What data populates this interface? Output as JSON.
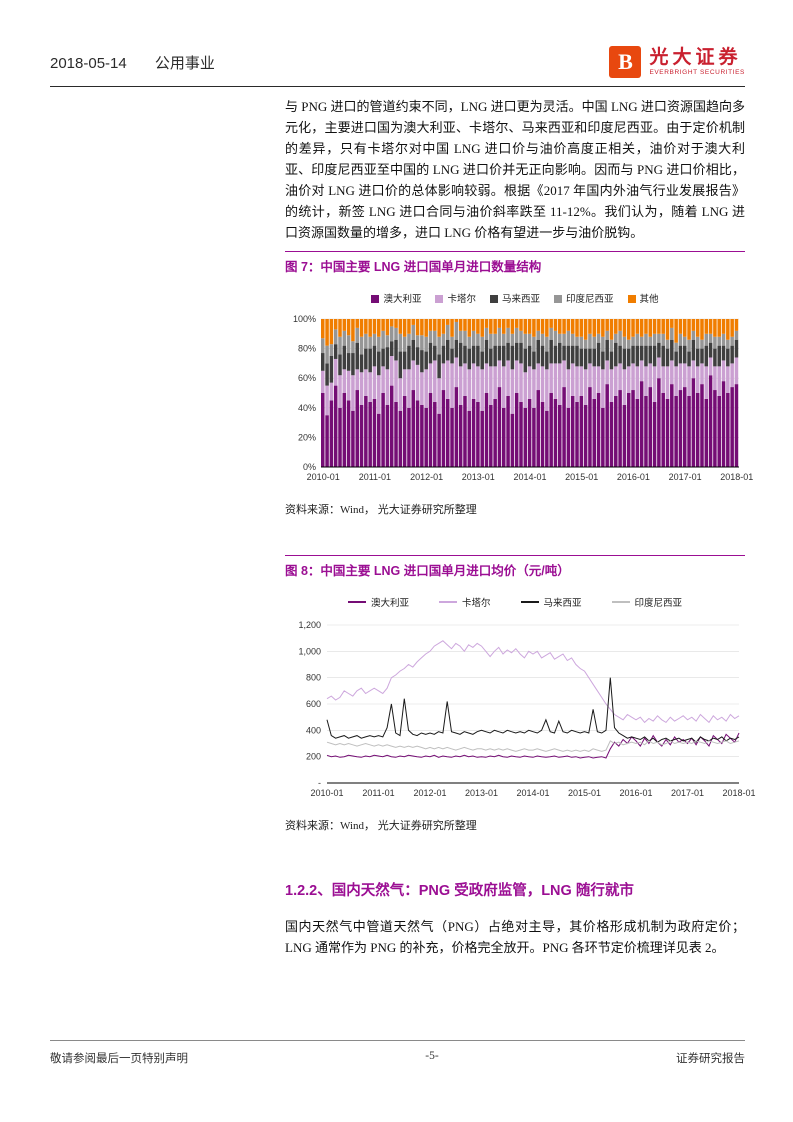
{
  "header": {
    "date": "2018-05-14",
    "sector": "公用事业",
    "brand_name": "光大证券",
    "brand_subtitle": "EVERBRIGHT SECURITIES",
    "logo_letter": "B",
    "logo_color": "#E8480F",
    "brand_red": "#C9202F"
  },
  "paragraphs": {
    "p1": "与 PNG 进口的管道约束不同，LNG 进口更为灵活。中国 LNG 进口资源国趋向多元化，主要进口国为澳大利亚、卡塔尔、马来西亚和印度尼西亚。由于定价机制的差异，只有卡塔尔对中国 LNG 进口价与油价高度正相关，油价对于澳大利亚、印度尼西亚至中国的 LNG 进口价并无正向影响。因而与 PNG 进口价相比，油价对 LNG 进口价的总体影响较弱。根据《2017 年国内外油气行业发展报告》的统计，新签 LNG 进口合同与油价斜率跌至 11-12%。我们认为，随着 LNG 进口资源国数量的增多，进口 LNG 价格有望进一步与油价脱钩。",
    "p2": "国内天然气中管道天然气（PNG）占绝对主导，其价格形成机制为政府定价；LNG 通常作为 PNG 的补充，价格完全放开。PNG 各环节定价梳理详见表 2。"
  },
  "figure7": {
    "title": "图 7：中国主要 LNG 进口国单月进口数量结构",
    "source": "资料来源：Wind， 光大证券研究所整理"
  },
  "figure8": {
    "title": "图 8：中国主要 LNG 进口国单月进口均价（元/吨）",
    "source": "资料来源：Wind， 光大证券研究所整理"
  },
  "section122": {
    "heading": "1.2.2、国内天然气：PNG 受政府监管，LNG 随行就市"
  },
  "footer": {
    "left": "敬请参阅最后一页特别声明",
    "center": "-5-",
    "right": "证券研究报告"
  },
  "accent_purple": "#9B0E93",
  "chart_data": [
    {
      "type": "bar",
      "subtype": "stacked-100pct",
      "title": "图 7：中国主要 LNG 进口国单月进口数量结构",
      "x_range": [
        "2010-01",
        "2018-01"
      ],
      "x_tick_labels": [
        "2010-01",
        "2011-01",
        "2012-01",
        "2013-01",
        "2014-01",
        "2015-01",
        "2016-01",
        "2017-01",
        "2018-01"
      ],
      "y_tick_labels": [
        "100%",
        "80%",
        "60%",
        "40%",
        "20%",
        "0%"
      ],
      "ylim": [
        0,
        100
      ],
      "grid": true,
      "legend_position": "top",
      "series": [
        {
          "name": "澳大利亚",
          "color": "#750D75",
          "values": [
            50,
            35,
            45,
            55,
            40,
            50,
            45,
            38,
            52,
            42,
            48,
            44,
            46,
            36,
            50,
            42,
            55,
            44,
            38,
            48,
            40,
            52,
            45,
            42,
            40,
            50,
            44,
            36,
            52,
            46,
            40,
            54,
            42,
            48,
            38,
            46,
            44,
            38,
            50,
            42,
            46,
            54,
            40,
            48,
            36,
            50,
            44,
            40,
            46,
            40,
            52,
            44,
            38,
            50,
            46,
            42,
            54,
            40,
            48,
            44,
            48,
            42,
            54,
            46,
            50,
            40,
            56,
            44,
            48,
            52,
            42,
            50,
            52,
            46,
            58,
            48,
            54,
            44,
            60,
            50,
            46,
            56,
            48,
            52,
            54,
            48,
            60,
            50,
            56,
            46,
            62,
            52,
            48,
            58,
            50,
            54,
            56
          ]
        },
        {
          "name": "卡塔尔",
          "color": "#CBA0D2",
          "values": [
            15,
            20,
            12,
            18,
            22,
            16,
            20,
            24,
            14,
            22,
            18,
            20,
            22,
            26,
            18,
            24,
            20,
            28,
            22,
            18,
            26,
            20,
            24,
            22,
            26,
            20,
            28,
            24,
            18,
            26,
            30,
            20,
            26,
            22,
            28,
            24,
            24,
            28,
            20,
            26,
            22,
            18,
            28,
            24,
            30,
            22,
            26,
            24,
            22,
            26,
            18,
            24,
            28,
            20,
            24,
            28,
            18,
            26,
            22,
            24,
            20,
            24,
            16,
            22,
            18,
            26,
            16,
            22,
            20,
            18,
            24,
            18,
            18,
            22,
            14,
            20,
            16,
            24,
            14,
            18,
            22,
            16,
            20,
            18,
            16,
            20,
            12,
            18,
            14,
            22,
            12,
            16,
            20,
            14,
            18,
            16,
            18
          ]
        },
        {
          "name": "马来西亚",
          "color": "#3F3F3F",
          "values": [
            12,
            15,
            18,
            10,
            14,
            16,
            12,
            15,
            18,
            12,
            14,
            16,
            14,
            16,
            12,
            15,
            10,
            14,
            18,
            12,
            16,
            14,
            12,
            15,
            12,
            14,
            10,
            16,
            12,
            14,
            10,
            12,
            16,
            12,
            14,
            12,
            14,
            12,
            16,
            12,
            14,
            10,
            14,
            12,
            16,
            12,
            14,
            16,
            14,
            12,
            16,
            14,
            12,
            16,
            12,
            14,
            10,
            16,
            12,
            14,
            12,
            14,
            10,
            12,
            16,
            12,
            14,
            12,
            16,
            12,
            14,
            12,
            12,
            14,
            10,
            14,
            12,
            14,
            10,
            14,
            12,
            14,
            10,
            12,
            12,
            10,
            14,
            12,
            10,
            14,
            10,
            12,
            14,
            10,
            12,
            12,
            12
          ]
        },
        {
          "name": "印度尼西亚",
          "color": "#969696",
          "values": [
            10,
            12,
            8,
            10,
            12,
            10,
            12,
            8,
            10,
            12,
            10,
            8,
            8,
            10,
            12,
            8,
            10,
            8,
            12,
            10,
            8,
            10,
            8,
            10,
            10,
            8,
            10,
            12,
            8,
            10,
            8,
            12,
            8,
            10,
            8,
            10,
            8,
            10,
            8,
            10,
            8,
            12,
            8,
            10,
            8,
            10,
            8,
            10,
            8,
            10,
            6,
            8,
            10,
            8,
            10,
            6,
            8,
            10,
            8,
            6,
            8,
            6,
            10,
            8,
            6,
            10,
            6,
            8,
            6,
            10,
            8,
            6,
            6,
            8,
            6,
            8,
            6,
            8,
            6,
            8,
            6,
            8,
            6,
            8,
            6,
            8,
            6,
            8,
            6,
            8,
            6,
            8,
            6,
            8,
            6,
            6,
            6
          ]
        },
        {
          "name": "其他",
          "color": "#F07D00",
          "values": [
            13,
            18,
            17,
            7,
            12,
            8,
            11,
            15,
            6,
            12,
            10,
            12,
            10,
            12,
            8,
            11,
            5,
            6,
            10,
            12,
            10,
            4,
            11,
            11,
            12,
            8,
            8,
            12,
            10,
            4,
            12,
            2,
            8,
            8,
            12,
            8,
            10,
            12,
            6,
            10,
            10,
            6,
            10,
            6,
            10,
            6,
            8,
            10,
            10,
            12,
            8,
            10,
            12,
            6,
            8,
            10,
            10,
            8,
            10,
            12,
            12,
            14,
            10,
            12,
            10,
            12,
            8,
            14,
            10,
            8,
            12,
            14,
            12,
            10,
            12,
            10,
            12,
            10,
            10,
            10,
            14,
            6,
            16,
            10,
            12,
            14,
            8,
            12,
            14,
            10,
            10,
            12,
            12,
            10,
            14,
            12,
            8
          ]
        }
      ]
    },
    {
      "type": "line",
      "title": "图 8：中国主要 LNG 进口国单月进口均价（元/吨）",
      "x_range": [
        "2010-01",
        "2018-01"
      ],
      "x_tick_labels": [
        "2010-01",
        "2011-01",
        "2012-01",
        "2013-01",
        "2014-01",
        "2015-01",
        "2016-01",
        "2017-01",
        "2018-01"
      ],
      "y_tick_labels": [
        "1,200",
        "1,000",
        "800",
        "600",
        "400",
        "200",
        "-"
      ],
      "ylim": [
        0,
        1200
      ],
      "grid": true,
      "legend_position": "top",
      "series": [
        {
          "name": "澳大利亚",
          "color": "#750D75",
          "values": [
            210,
            200,
            205,
            195,
            200,
            210,
            205,
            200,
            195,
            205,
            200,
            210,
            205,
            200,
            210,
            200,
            195,
            205,
            200,
            210,
            205,
            200,
            195,
            205,
            200,
            210,
            195,
            205,
            200,
            195,
            205,
            200,
            210,
            200,
            205,
            195,
            200,
            195,
            205,
            200,
            210,
            200,
            195,
            205,
            200,
            195,
            205,
            200,
            195,
            205,
            200,
            195,
            200,
            205,
            195,
            200,
            205,
            195,
            200,
            190,
            195,
            200,
            190,
            195,
            200,
            190,
            260,
            310,
            280,
            330,
            300,
            350,
            320,
            280,
            340,
            300,
            360,
            310,
            280,
            330,
            290,
            350,
            310,
            330,
            300,
            340,
            290,
            350,
            320,
            280,
            360,
            330,
            300,
            370,
            340,
            310,
            380
          ]
        },
        {
          "name": "卡塔尔",
          "color": "#CDA7DD",
          "values": [
            640,
            660,
            630,
            650,
            700,
            680,
            660,
            700,
            720,
            680,
            700,
            720,
            700,
            680,
            720,
            800,
            820,
            850,
            870,
            900,
            880,
            920,
            950,
            980,
            1000,
            1040,
            1060,
            1080,
            1050,
            1020,
            1060,
            1040,
            1000,
            1050,
            1030,
            1060,
            1040,
            1000,
            960,
            1000,
            1030,
            980,
            1010,
            990,
            1020,
            980,
            950,
            1000,
            980,
            1000,
            950,
            970,
            990,
            940,
            960,
            980,
            930,
            950,
            900,
            870,
            850,
            800,
            750,
            700,
            650,
            600,
            560,
            520,
            500,
            480,
            520,
            500,
            480,
            500,
            460,
            490,
            470,
            510,
            480,
            460,
            500,
            470,
            490,
            510,
            480,
            500,
            470,
            520,
            490,
            460,
            510,
            480,
            500,
            470,
            520,
            490,
            510
          ]
        },
        {
          "name": "马来西亚",
          "color": "#1A1A1A",
          "values": [
            480,
            360,
            340,
            350,
            360,
            340,
            350,
            360,
            340,
            350,
            360,
            350,
            360,
            350,
            420,
            600,
            380,
            360,
            640,
            400,
            370,
            360,
            380,
            370,
            380,
            370,
            390,
            380,
            620,
            390,
            380,
            370,
            390,
            380,
            370,
            390,
            400,
            390,
            380,
            400,
            390,
            380,
            400,
            390,
            380,
            390,
            380,
            400,
            390,
            380,
            400,
            480,
            390,
            380,
            470,
            390,
            380,
            400,
            390,
            380,
            390,
            380,
            560,
            390,
            380,
            400,
            800,
            420,
            380,
            360,
            340,
            350,
            340,
            330,
            350,
            320,
            340,
            310,
            330,
            340,
            320,
            330,
            340,
            320,
            330,
            340,
            310,
            350,
            330,
            320,
            340,
            330,
            350,
            320,
            340,
            330,
            350
          ]
        },
        {
          "name": "印度尼西亚",
          "color": "#BFBFBF",
          "values": [
            310,
            300,
            290,
            300,
            290,
            300,
            290,
            280,
            290,
            300,
            290,
            280,
            290,
            280,
            290,
            280,
            270,
            280,
            270,
            280,
            270,
            280,
            270,
            260,
            270,
            260,
            270,
            260,
            270,
            260,
            250,
            260,
            270,
            260,
            250,
            260,
            260,
            250,
            260,
            250,
            260,
            250,
            260,
            250,
            240,
            250,
            260,
            250,
            250,
            260,
            250,
            240,
            250,
            260,
            250,
            240,
            250,
            240,
            250,
            240,
            250,
            240,
            260,
            250,
            240,
            250,
            320,
            300,
            310,
            290,
            300,
            310,
            300,
            310,
            290,
            320,
            300,
            310,
            290,
            300,
            320,
            300,
            310,
            300,
            310,
            300,
            320,
            310,
            300,
            320,
            310,
            300,
            310,
            320,
            300,
            310,
            320
          ]
        }
      ]
    }
  ]
}
